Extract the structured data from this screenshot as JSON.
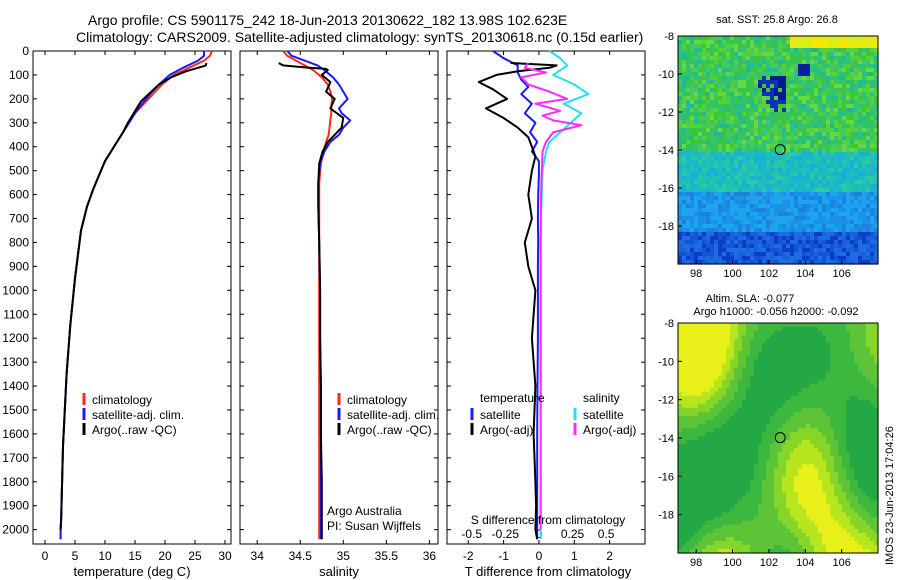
{
  "header": {
    "line1": "Argo profile: CS 5901175_242 18-Jun-2013 20130622_182 13.98S 102.623E",
    "line2": "Climatology: CARS2009. Satellite-adjusted climatology: synTS_20130618.nc (0.15d earlier)"
  },
  "colors": {
    "clim": "#ff2a1a",
    "sat": "#1a1aff",
    "argo": "#000000",
    "sal_sat": "#22e0f0",
    "sal_argo": "#ff2aff"
  },
  "chart_data": [
    {
      "type": "line",
      "id": "temperature",
      "xlabel": "temperature (deg C)",
      "xlim": [
        -2,
        31
      ],
      "ylim": [
        2060,
        0
      ],
      "xticks": [
        0,
        5,
        10,
        15,
        20,
        25,
        30
      ],
      "yticks": [
        0,
        100,
        200,
        300,
        400,
        500,
        600,
        700,
        800,
        900,
        1000,
        1100,
        1200,
        1300,
        1400,
        1500,
        1600,
        1700,
        1800,
        1900,
        2000
      ],
      "legend": [
        "climatology",
        "satellite-adj. clim.",
        "Argo(..raw -QC)"
      ],
      "series": [
        {
          "name": "climatology",
          "color": "clim",
          "x": [
            27.8,
            27.5,
            26.5,
            24,
            21.5,
            19.5,
            18,
            16.5,
            15,
            14,
            13,
            12,
            11,
            10,
            9,
            8,
            7,
            6,
            5.5,
            5,
            4.6,
            4.2,
            3.9,
            3.6,
            3.4,
            3.2,
            3,
            2.9,
            2.8,
            2.7,
            2.6,
            2.6
          ],
          "y": [
            0,
            20,
            40,
            70,
            100,
            140,
            180,
            220,
            260,
            300,
            340,
            380,
            420,
            460,
            520,
            580,
            650,
            750,
            850,
            950,
            1050,
            1150,
            1250,
            1350,
            1450,
            1550,
            1650,
            1750,
            1850,
            1950,
            2000,
            2040
          ]
        },
        {
          "name": "satellite-adj. clim.",
          "color": "sat",
          "x": [
            26.5,
            26.5,
            25.5,
            23,
            20.8,
            19,
            17.5,
            16.2,
            15,
            14,
            13,
            12,
            11,
            10,
            9,
            8,
            7,
            6,
            5.5,
            5,
            4.6,
            4.2,
            3.9,
            3.6,
            3.4,
            3.2,
            3,
            2.9,
            2.8,
            2.7,
            2.6,
            2.6
          ],
          "y": [
            0,
            20,
            40,
            70,
            100,
            140,
            180,
            220,
            260,
            300,
            340,
            380,
            420,
            460,
            520,
            580,
            650,
            750,
            850,
            950,
            1050,
            1150,
            1250,
            1350,
            1450,
            1550,
            1650,
            1750,
            1850,
            1950,
            2000,
            2040
          ]
        },
        {
          "name": "Argo(..raw -QC)",
          "color": "argo",
          "x": [
            26.9,
            26.8,
            25.5,
            23.5,
            21,
            19,
            17.5,
            16,
            14.8,
            13.8,
            13,
            12,
            11,
            10,
            9,
            8,
            7,
            6,
            5.5,
            5,
            4.6,
            4.2,
            3.9,
            3.6,
            3.4,
            3.2,
            3,
            2.9,
            2.8,
            2.7,
            2.6
          ],
          "y": [
            50,
            60,
            70,
            85,
            110,
            140,
            175,
            210,
            260,
            300,
            340,
            380,
            420,
            460,
            520,
            580,
            650,
            750,
            850,
            950,
            1050,
            1150,
            1250,
            1350,
            1450,
            1550,
            1650,
            1750,
            1850,
            1950,
            2000
          ]
        }
      ]
    },
    {
      "type": "line",
      "id": "salinity",
      "xlabel": "salinity",
      "xlim": [
        33.8,
        36.1
      ],
      "ylim": [
        2060,
        0
      ],
      "xticks": [
        34,
        34.5,
        35,
        35.5,
        36
      ],
      "legend": [
        "climatology",
        "satellite-adj. clim.",
        "Argo(..raw -QC)"
      ],
      "annotations": [
        "Argo Australia",
        "PI: Susan Wijffels"
      ],
      "series": [
        {
          "name": "climatology",
          "color": "clim",
          "x": [
            34.3,
            34.35,
            34.45,
            34.55,
            34.65,
            34.75,
            34.82,
            34.85,
            34.87,
            34.86,
            34.86,
            34.85,
            34.84,
            34.83,
            34.8,
            34.77,
            34.74,
            34.72,
            34.72,
            34.72,
            34.72,
            34.72,
            34.72,
            34.72,
            34.72,
            34.72,
            34.72,
            34.72,
            34.72
          ],
          "y": [
            0,
            20,
            40,
            60,
            80,
            110,
            140,
            170,
            200,
            230,
            260,
            290,
            320,
            350,
            380,
            420,
            470,
            550,
            650,
            800,
            1000,
            1200,
            1400,
            1600,
            1800,
            1900,
            1950,
            2000,
            2040
          ]
        },
        {
          "name": "satellite-adj. clim.",
          "color": "sat",
          "x": [
            34.35,
            34.4,
            34.55,
            34.7,
            34.78,
            34.88,
            34.95,
            35.05,
            34.95,
            34.98,
            35.08,
            35.0,
            34.95,
            34.85,
            34.78,
            34.73,
            34.71,
            34.71,
            34.72,
            34.73,
            34.73,
            34.74,
            34.74,
            34.74,
            34.74,
            34.74,
            34.74,
            34.74
          ],
          "y": [
            0,
            20,
            40,
            60,
            80,
            110,
            140,
            200,
            240,
            260,
            290,
            320,
            350,
            380,
            420,
            470,
            550,
            650,
            800,
            1000,
            1200,
            1400,
            1600,
            1800,
            1900,
            1950,
            2000,
            2040
          ]
        },
        {
          "name": "Argo(..raw -QC)",
          "color": "argo",
          "x": [
            34.25,
            34.3,
            34.6,
            34.8,
            34.82,
            34.75,
            34.85,
            34.8,
            34.9,
            34.85,
            35.0,
            34.98,
            34.9,
            34.82,
            34.76,
            34.72,
            34.71,
            34.71,
            34.72,
            34.73,
            34.73,
            34.74,
            34.74,
            34.75,
            34.75,
            34.75,
            34.75,
            34.75
          ],
          "y": [
            50,
            60,
            70,
            75,
            80,
            100,
            130,
            170,
            200,
            240,
            280,
            320,
            350,
            380,
            420,
            470,
            550,
            650,
            800,
            1000,
            1200,
            1400,
            1600,
            1800,
            1900,
            1950,
            2000,
            2040
          ]
        }
      ]
    },
    {
      "type": "line",
      "id": "difference",
      "xlabel": "T difference from climatology",
      "xlabel_top": "S difference from climatology",
      "xlim": [
        -2.6,
        3
      ],
      "ylim": [
        2060,
        0
      ],
      "xticks_T": [
        -2,
        -1,
        0,
        1,
        2
      ],
      "xticks_S": [
        -0.5,
        -0.25,
        0,
        0.25,
        0.5
      ],
      "legend_T": {
        "heading": "temperature",
        "items": [
          "satellite",
          "Argo(-adj)"
        ]
      },
      "legend_S": {
        "heading": "salinity",
        "items": [
          "satellite",
          "Argo(-adj)"
        ]
      },
      "series": [
        {
          "name": "T satellite",
          "color": "sat",
          "x": [
            -1.3,
            -1.0,
            -0.6,
            -0.6,
            -0.5,
            -0.3,
            -0.5,
            -0.2,
            -0.4,
            -0.1,
            -0.25,
            -0.05,
            -0.2,
            0,
            0,
            -0.02,
            -0.03,
            -0.02,
            -0.03,
            -0.03,
            -0.03,
            -0.04,
            -0.05,
            -0.05,
            -0.05,
            -0.05,
            -0.05
          ],
          "y": [
            0,
            30,
            60,
            90,
            120,
            150,
            180,
            220,
            260,
            300,
            340,
            380,
            420,
            460,
            520,
            600,
            700,
            800,
            900,
            1000,
            1200,
            1400,
            1600,
            1800,
            1900,
            2000,
            2040
          ]
        },
        {
          "name": "T Argo(-adj)",
          "color": "argo",
          "x": [
            -0.8,
            0.5,
            0.3,
            -0.6,
            -1.2,
            -1.7,
            -1.3,
            -0.9,
            -1.5,
            -1.0,
            -0.6,
            -0.3,
            -0.2,
            -0.1,
            -0.2,
            -0.3,
            -0.2,
            -0.4,
            -0.3,
            -0.1,
            -0.2,
            -0.1,
            -0.15,
            -0.1,
            -0.08,
            -0.1,
            -0.05
          ],
          "y": [
            50,
            60,
            70,
            85,
            100,
            130,
            160,
            200,
            240,
            280,
            320,
            360,
            400,
            440,
            500,
            600,
            700,
            800,
            900,
            1000,
            1200,
            1400,
            1600,
            1800,
            1900,
            2000,
            2040
          ]
        },
        {
          "name": "S satellite",
          "color": "sal_sat",
          "x": [
            0.3,
            0.6,
            0.8,
            0.4,
            1.0,
            1.4,
            0.7,
            1.2,
            0.9,
            0.6,
            0.3,
            0.2,
            0.15,
            0.1,
            0.08,
            0.06,
            0.05,
            0.05,
            0.05,
            0.05,
            0.05,
            0.05,
            0.05,
            0.05,
            0.05
          ],
          "y": [
            0,
            30,
            60,
            100,
            140,
            180,
            220,
            260,
            300,
            340,
            380,
            420,
            460,
            500,
            600,
            700,
            800,
            900,
            1000,
            1200,
            1400,
            1600,
            1800,
            2000,
            2040
          ]
        },
        {
          "name": "S Argo(-adj)",
          "color": "sal_argo",
          "x": [
            -0.3,
            -0.4,
            0.2,
            -0.5,
            -0.3,
            0.3,
            0.8,
            -0.1,
            0.6,
            0.1,
            0.4,
            1.2,
            0.4,
            0.2,
            0.1,
            0.08,
            0.06,
            0.05,
            0.05,
            0.05,
            0.05,
            0.05,
            0.05,
            0.05
          ],
          "y": [
            50,
            70,
            90,
            110,
            140,
            170,
            200,
            220,
            250,
            270,
            290,
            310,
            340,
            380,
            420,
            500,
            600,
            800,
            1000,
            1200,
            1400,
            1600,
            1800,
            2000
          ]
        }
      ]
    },
    {
      "type": "heatmap",
      "id": "sst-map",
      "title": "sat. SST: 25.8  Argo: 26.8",
      "xticks": [
        98,
        100,
        102,
        104,
        106
      ],
      "yticks": [
        -8,
        -10,
        -12,
        -14,
        -16,
        -18
      ],
      "xlim": [
        97,
        108
      ],
      "ylim": [
        -20,
        -8
      ],
      "marker": {
        "lon": 102.62,
        "lat": -13.98
      }
    },
    {
      "type": "heatmap",
      "id": "sla-map",
      "title": "Altim. SLA: -0.077",
      "subtitle": "Argo h1000: -0.056 h2000: -0.092",
      "xticks": [
        98,
        100,
        102,
        104,
        106
      ],
      "yticks": [
        -8,
        -10,
        -12,
        -14,
        -16,
        -18
      ],
      "xlim": [
        97,
        108
      ],
      "ylim": [
        -20,
        -8
      ],
      "marker": {
        "lon": 102.62,
        "lat": -13.98
      }
    }
  ],
  "side_stamp": "IMOS 23-Jun-2013 17:04:26"
}
